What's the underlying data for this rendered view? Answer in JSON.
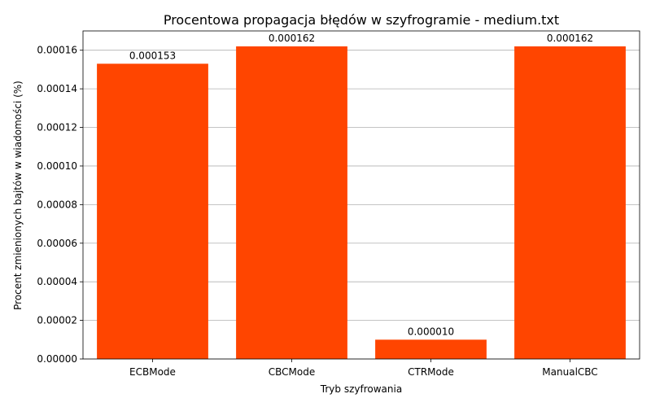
{
  "chart_data": {
    "type": "bar",
    "title": "Procentowa propagacja błędów w szyfrogramie - medium.txt",
    "xlabel": "Tryb szyfrowania",
    "ylabel": "Procent zmienionych bajtów w wiadomości (%)",
    "categories": [
      "ECBMode",
      "CBCMode",
      "CTRMode",
      "ManualCBC"
    ],
    "values": [
      0.000153,
      0.000162,
      1e-05,
      0.000162
    ],
    "data_labels": [
      "0.000153",
      "0.000162",
      "0.000010",
      "0.000162"
    ],
    "ylim": [
      0,
      0.00017
    ],
    "yticks": [
      0,
      2e-05,
      4e-05,
      6e-05,
      8e-05,
      0.0001,
      0.00012,
      0.00014,
      0.00016
    ],
    "ytick_labels": [
      "0.00000",
      "0.00002",
      "0.00004",
      "0.00006",
      "0.00008",
      "0.00010",
      "0.00012",
      "0.00014",
      "0.00016"
    ],
    "bar_color": "#ff4500",
    "grid": "y"
  }
}
